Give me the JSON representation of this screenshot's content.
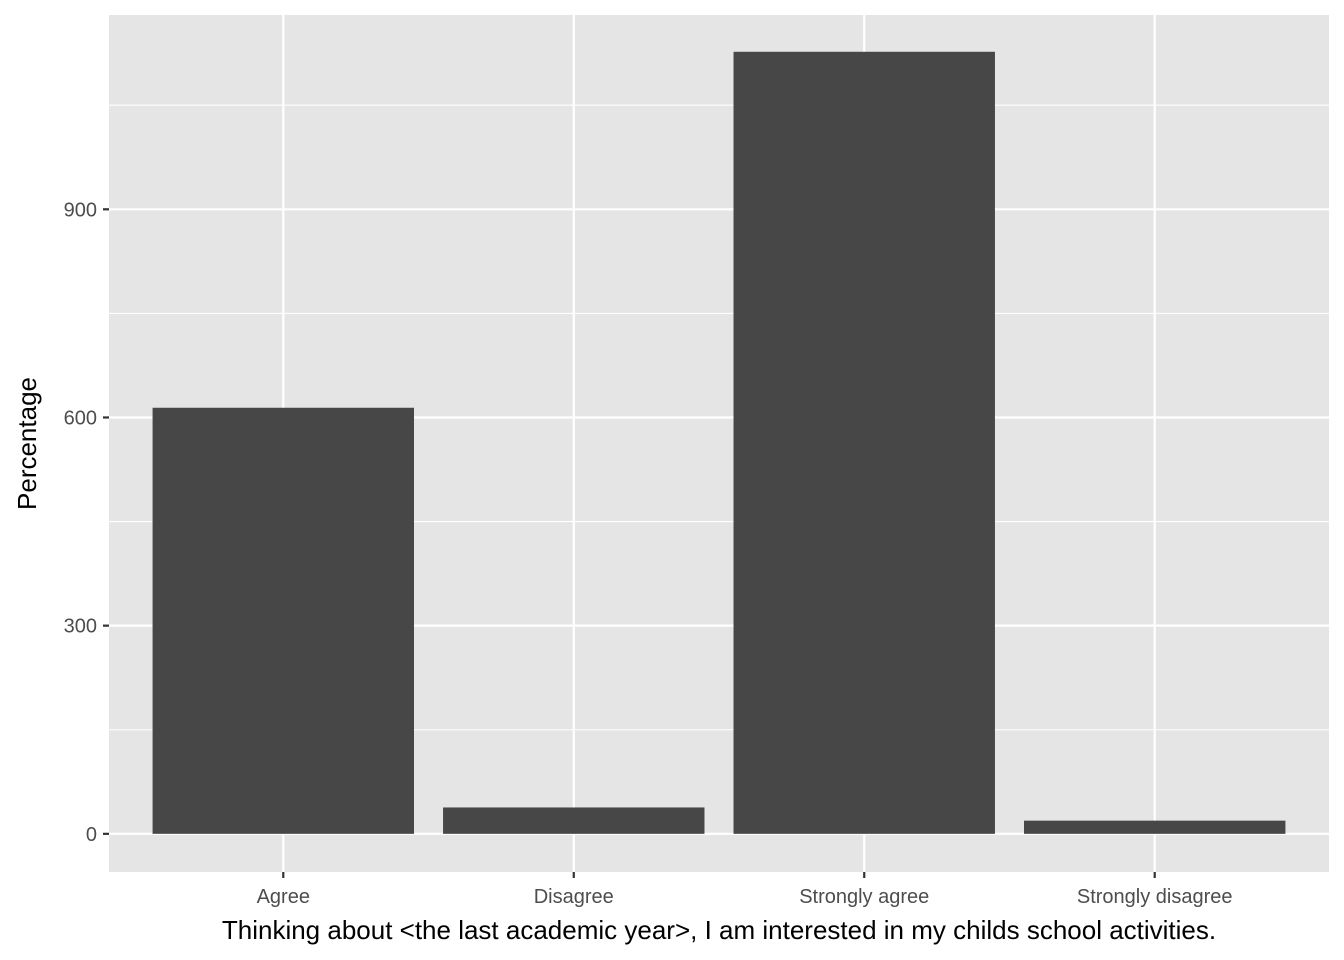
{
  "chart_data": {
    "type": "bar",
    "title": "",
    "xlabel": "Thinking about <the last academic year>, I am interested in my childs school activities.",
    "ylabel": "Percentage",
    "categories": [
      "Agree",
      "Disagree",
      "Strongly agree",
      "Strongly disagree"
    ],
    "values": [
      614,
      38,
      1127,
      19
    ],
    "ylim": [
      -55,
      1180
    ],
    "yticks": [
      0,
      300,
      600,
      900
    ],
    "grid": true,
    "legend": "none",
    "colors": {
      "bar": "#474747",
      "panel": "#e5e5e5",
      "grid": "#ffffff",
      "tick_text": "#4d4d4d",
      "axis_title": "#000000"
    }
  }
}
